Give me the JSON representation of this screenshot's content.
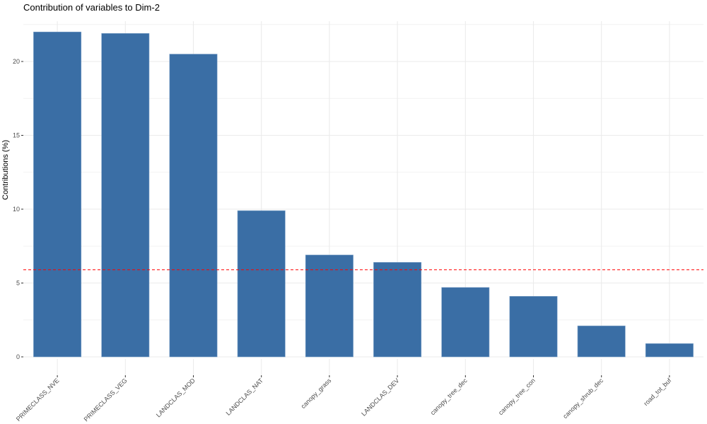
{
  "chart_data": {
    "type": "bar",
    "title": "Contribution of variables to Dim-2",
    "xlabel": "",
    "ylabel": "Contributions (%)",
    "categories": [
      "PRIMECLASS_NVE",
      "PRIMECLASS_VEG",
      "LANDCLAS_MOD",
      "LANDCLAS_NAT",
      "canopy_grass",
      "LANDCLAS_DEV",
      "canopy_tree_dec",
      "canopy_tree_con",
      "canopy_shrub_dec",
      "road_tot_buf"
    ],
    "values": [
      22.0,
      21.9,
      20.5,
      9.9,
      6.9,
      6.4,
      4.7,
      4.1,
      2.1,
      0.9
    ],
    "reference_line": 5.9,
    "reference_line_color": "#ff0000",
    "bar_color": "#3a6ea5",
    "ylim": [
      0,
      22.5
    ],
    "yticks": [
      0,
      5,
      10,
      15,
      20
    ],
    "grid": true,
    "legend": null
  }
}
